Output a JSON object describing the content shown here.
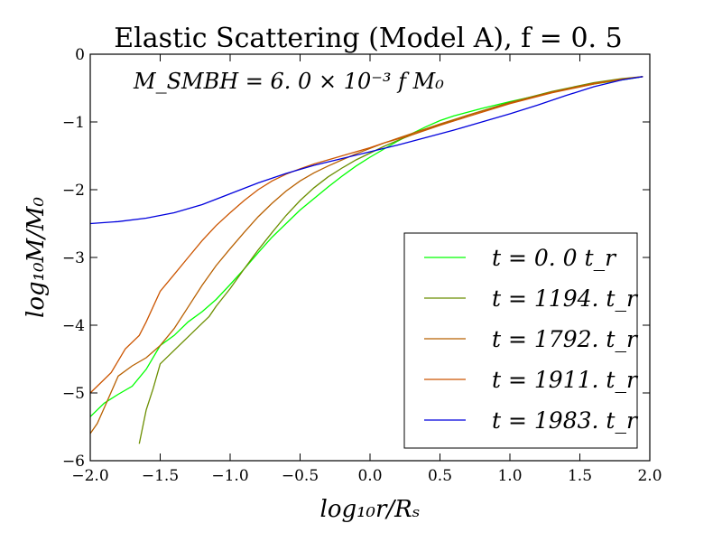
{
  "chart_data": {
    "type": "line",
    "title": "Elastic Scattering (Model A), f = 0. 5",
    "xlabel": "log₁₀r/Rₛ",
    "ylabel": "log₁₀M/M₀",
    "xlim": [
      -2.0,
      2.0
    ],
    "ylim": [
      -6,
      0
    ],
    "xticks": [
      -2.0,
      -1.5,
      -1.0,
      -0.5,
      0.0,
      0.5,
      1.0,
      1.5,
      2.0
    ],
    "xtick_labels": [
      "−2.0",
      "−1.5",
      "−1.0",
      "−0.5",
      "0.0",
      "0.5",
      "1.0",
      "1.5",
      "2.0"
    ],
    "yticks": [
      0,
      -1,
      -2,
      -3,
      -4,
      -5,
      -6
    ],
    "ytick_labels": [
      "0",
      "−1",
      "−2",
      "−3",
      "−4",
      "−5",
      "−6"
    ],
    "annotation": "M_SMBH = 6. 0 × 10⁻³ f M₀",
    "legend_position": "lower-right",
    "series": [
      {
        "name": "t = 0. 0 t_r",
        "color": "#00ff00",
        "x": [
          -2.0,
          -1.9,
          -1.8,
          -1.7,
          -1.6,
          -1.5,
          -1.4,
          -1.3,
          -1.2,
          -1.1,
          -1.0,
          -0.9,
          -0.8,
          -0.7,
          -0.6,
          -0.5,
          -0.4,
          -0.3,
          -0.2,
          -0.1,
          0.0,
          0.1,
          0.2,
          0.3,
          0.4,
          0.5,
          0.6,
          0.8,
          1.0,
          1.2,
          1.4,
          1.6,
          1.8,
          1.95
        ],
        "y": [
          -5.35,
          -5.15,
          -5.02,
          -4.9,
          -4.65,
          -4.3,
          -4.15,
          -3.95,
          -3.8,
          -3.62,
          -3.4,
          -3.17,
          -2.93,
          -2.7,
          -2.5,
          -2.3,
          -2.13,
          -1.96,
          -1.8,
          -1.65,
          -1.52,
          -1.4,
          -1.28,
          -1.17,
          -1.07,
          -0.98,
          -0.91,
          -0.8,
          -0.7,
          -0.61,
          -0.52,
          -0.44,
          -0.38,
          -0.33
        ]
      },
      {
        "name": "t = 1194. t_r",
        "color": "#6b8e00",
        "x": [
          -1.65,
          -1.6,
          -1.55,
          -1.5,
          -1.4,
          -1.3,
          -1.2,
          -1.15,
          -1.1,
          -1.0,
          -0.9,
          -0.8,
          -0.7,
          -0.6,
          -0.5,
          -0.4,
          -0.3,
          -0.2,
          -0.1,
          0.0,
          0.1,
          0.2,
          0.3,
          0.5,
          0.7,
          1.0,
          1.3,
          1.6,
          1.8,
          1.95
        ],
        "y": [
          -5.75,
          -5.25,
          -4.93,
          -4.57,
          -4.37,
          -4.17,
          -3.97,
          -3.87,
          -3.72,
          -3.46,
          -3.17,
          -2.89,
          -2.63,
          -2.38,
          -2.16,
          -1.97,
          -1.81,
          -1.68,
          -1.56,
          -1.46,
          -1.36,
          -1.27,
          -1.19,
          -1.04,
          -0.9,
          -0.71,
          -0.55,
          -0.42,
          -0.36,
          -0.33
        ]
      },
      {
        "name": "t = 1792. t_r",
        "color": "#b86000",
        "x": [
          -2.0,
          -1.95,
          -1.9,
          -1.8,
          -1.7,
          -1.6,
          -1.5,
          -1.4,
          -1.3,
          -1.2,
          -1.1,
          -1.0,
          -0.9,
          -0.8,
          -0.7,
          -0.6,
          -0.5,
          -0.4,
          -0.3,
          -0.2,
          -0.1,
          0.0,
          0.1,
          0.2,
          0.3,
          0.5,
          0.7,
          1.0,
          1.3,
          1.6,
          1.8,
          1.95
        ],
        "y": [
          -5.6,
          -5.45,
          -5.22,
          -4.75,
          -4.6,
          -4.48,
          -4.3,
          -4.05,
          -3.73,
          -3.41,
          -3.12,
          -2.87,
          -2.63,
          -2.4,
          -2.2,
          -2.02,
          -1.87,
          -1.75,
          -1.65,
          -1.56,
          -1.47,
          -1.39,
          -1.31,
          -1.24,
          -1.17,
          -1.03,
          -0.9,
          -0.72,
          -0.56,
          -0.43,
          -0.37,
          -0.33
        ]
      },
      {
        "name": "t = 1911. t_r",
        "color": "#cc5500",
        "x": [
          -2.0,
          -1.95,
          -1.9,
          -1.85,
          -1.75,
          -1.65,
          -1.6,
          -1.5,
          -1.4,
          -1.3,
          -1.2,
          -1.1,
          -1.0,
          -0.9,
          -0.8,
          -0.7,
          -0.6,
          -0.5,
          -0.4,
          -0.3,
          -0.2,
          -0.1,
          0.0,
          0.1,
          0.2,
          0.3,
          0.5,
          0.7,
          1.0,
          1.3,
          1.6,
          1.8,
          1.95
        ],
        "y": [
          -5.0,
          -4.9,
          -4.8,
          -4.7,
          -4.35,
          -4.15,
          -3.95,
          -3.5,
          -3.25,
          -3.0,
          -2.75,
          -2.53,
          -2.34,
          -2.16,
          -2.0,
          -1.87,
          -1.77,
          -1.69,
          -1.62,
          -1.56,
          -1.5,
          -1.44,
          -1.38,
          -1.31,
          -1.25,
          -1.19,
          -1.05,
          -0.92,
          -0.73,
          -0.57,
          -0.44,
          -0.37,
          -0.33
        ]
      },
      {
        "name": "t = 1983. t_r",
        "color": "#0000dd",
        "x": [
          -2.0,
          -1.8,
          -1.6,
          -1.4,
          -1.2,
          -1.0,
          -0.8,
          -0.6,
          -0.4,
          -0.2,
          0.0,
          0.2,
          0.4,
          0.6,
          0.8,
          1.0,
          1.2,
          1.4,
          1.6,
          1.8,
          1.95
        ],
        "y": [
          -2.5,
          -2.47,
          -2.42,
          -2.34,
          -2.22,
          -2.06,
          -1.9,
          -1.76,
          -1.64,
          -1.54,
          -1.44,
          -1.34,
          -1.23,
          -1.12,
          -1.0,
          -0.88,
          -0.75,
          -0.61,
          -0.48,
          -0.38,
          -0.33
        ]
      }
    ]
  }
}
